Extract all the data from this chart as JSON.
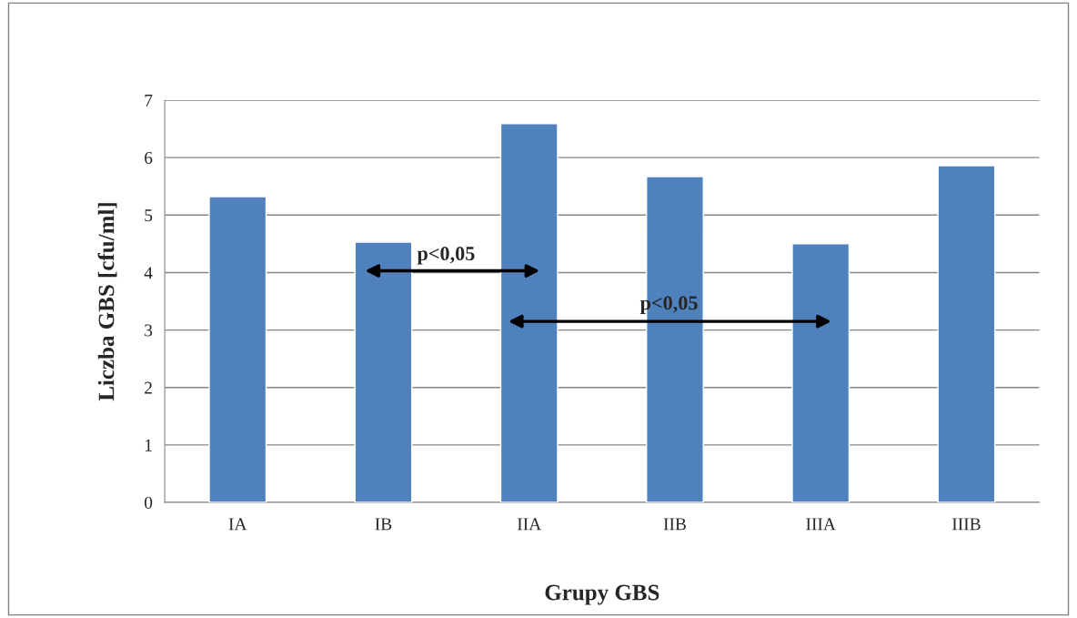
{
  "chart_data": {
    "type": "bar",
    "xlabel": "Grupy GBS",
    "ylabel": "Liczba GBS [cfu/ml]",
    "categories": [
      "IA",
      "IB",
      "IIA",
      "IIB",
      "IIIA",
      "IIIB"
    ],
    "values": [
      5.32,
      4.53,
      6.59,
      5.67,
      4.5,
      5.86
    ],
    "color": "#4f81bd",
    "ylim": [
      0,
      7
    ],
    "yticks": [
      0,
      1,
      2,
      3,
      4,
      5,
      6,
      7
    ],
    "grid": "y",
    "annotations": [
      "p<0,05",
      "p<0,05"
    ]
  }
}
